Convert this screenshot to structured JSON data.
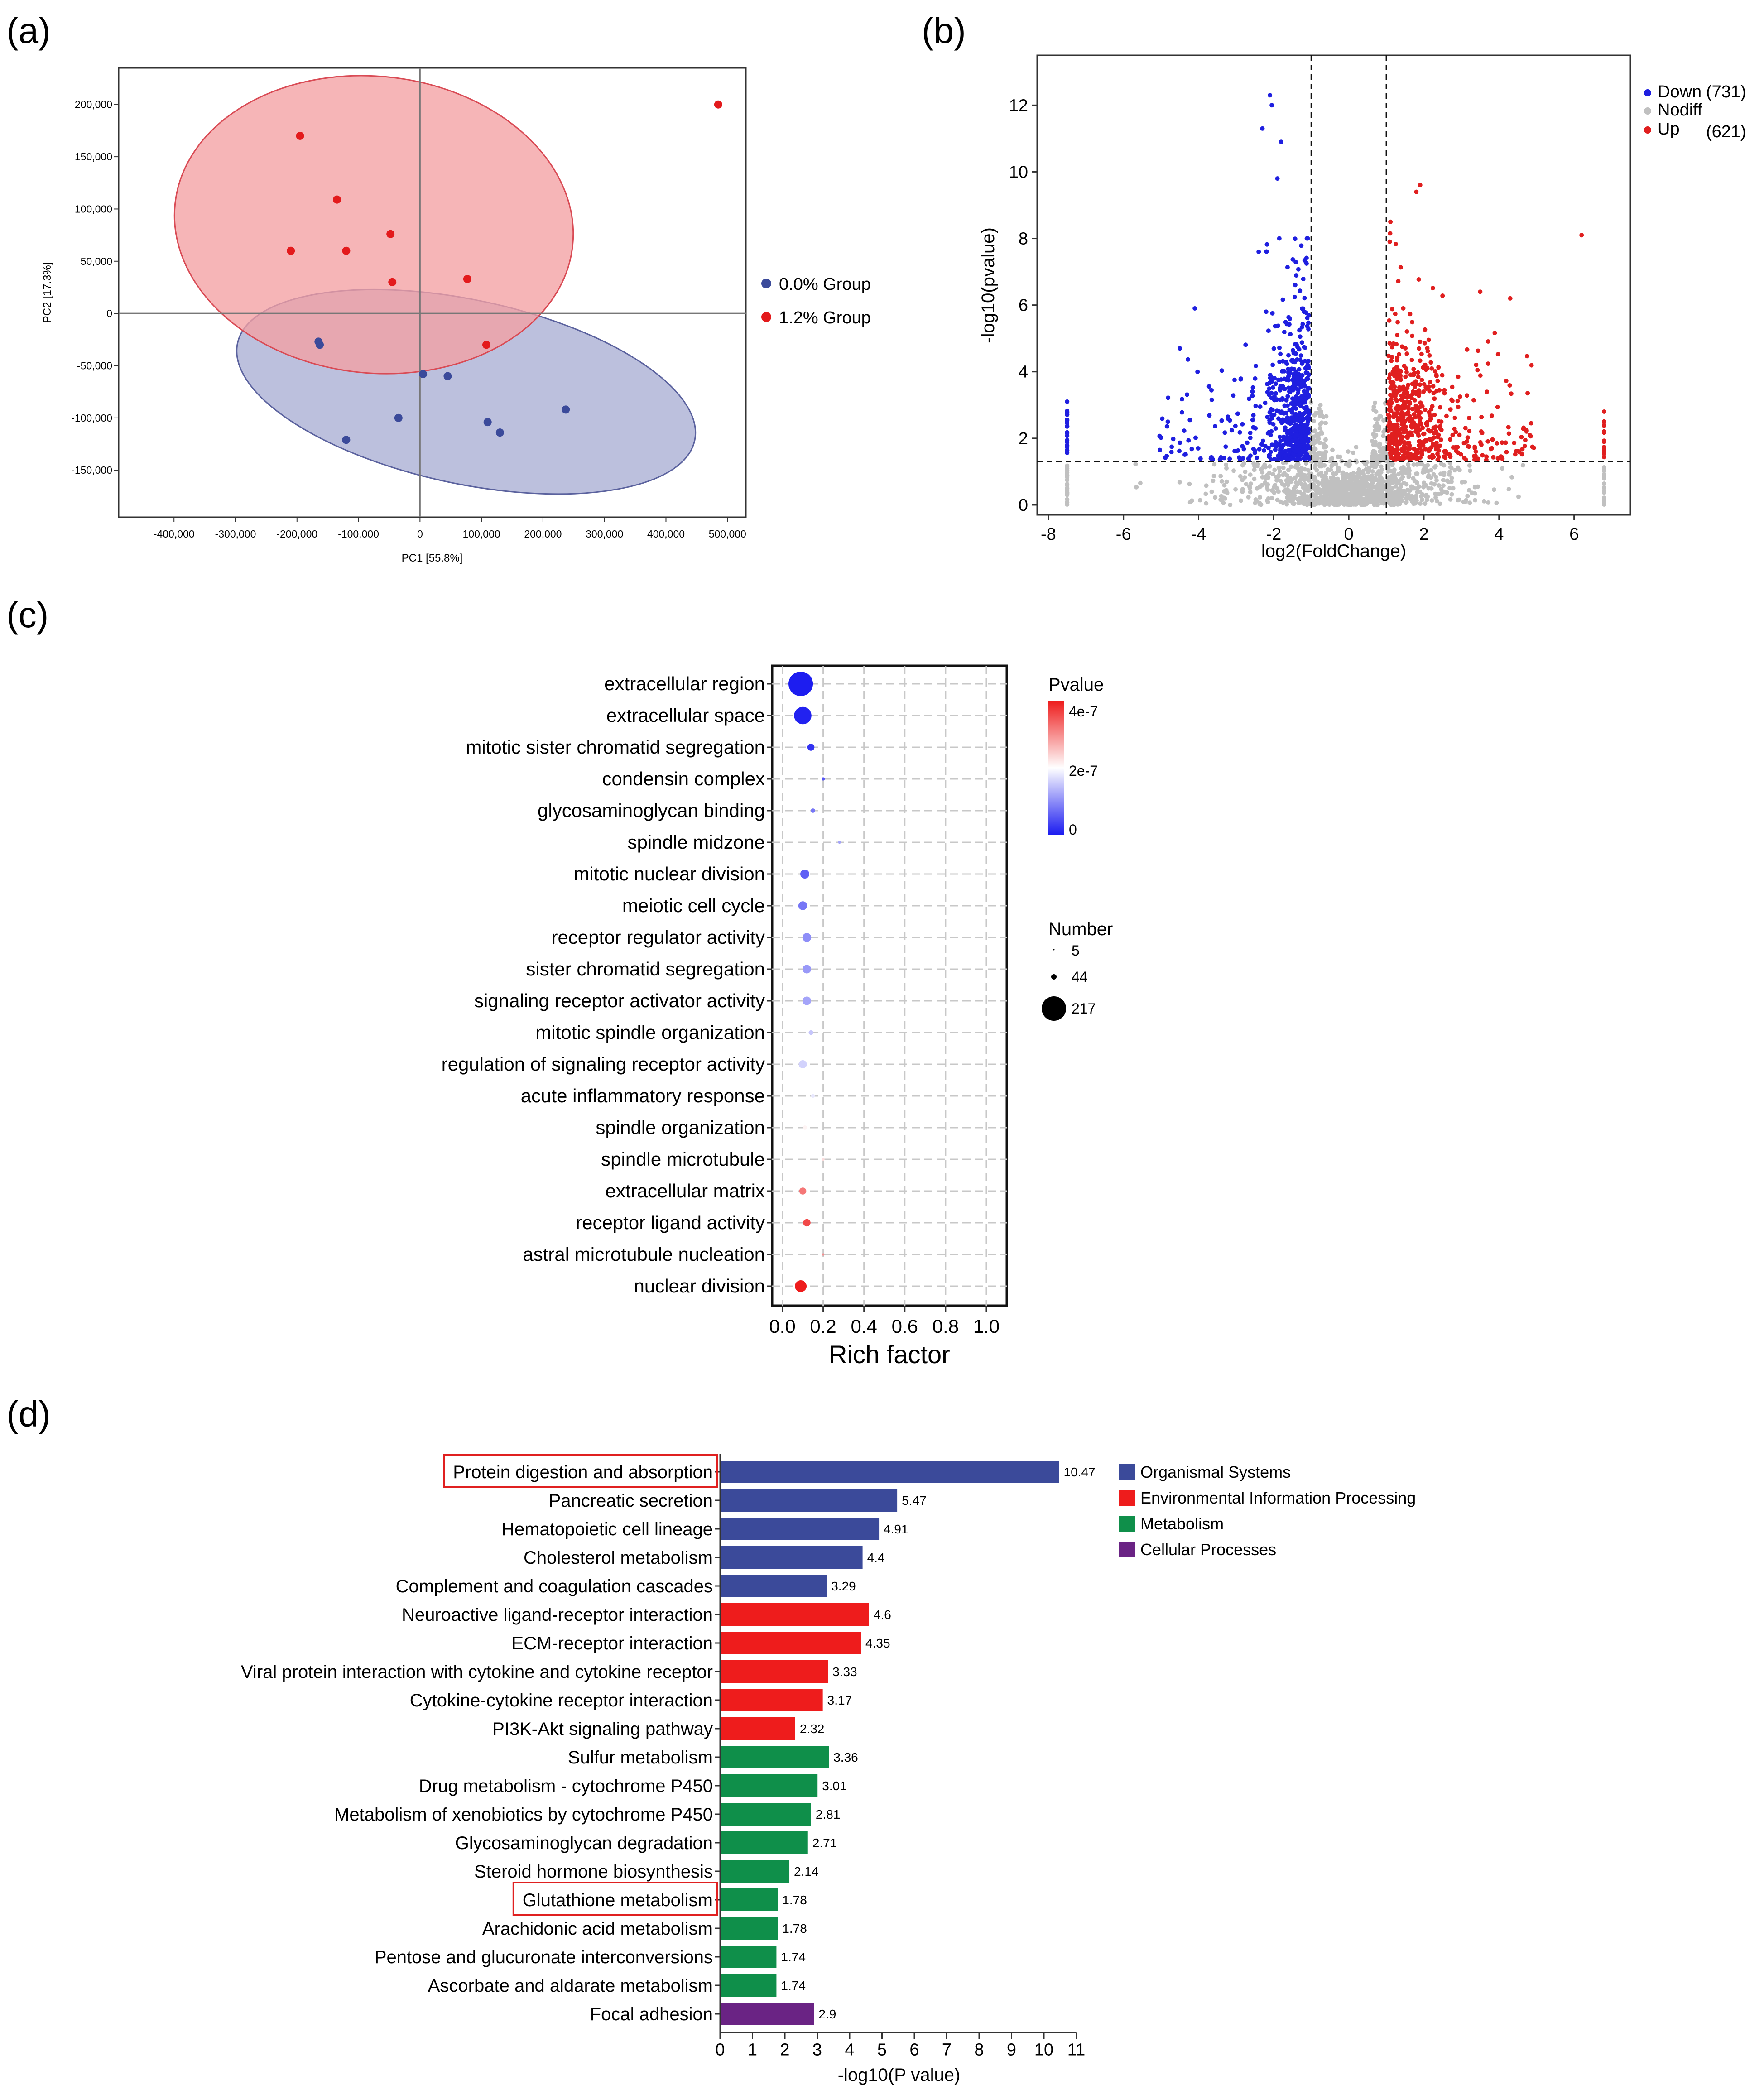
{
  "panels": {
    "a": {
      "label": "(a)"
    },
    "b": {
      "label": "(b)"
    },
    "c": {
      "label": "(c)"
    },
    "d": {
      "label": "(d)"
    }
  },
  "colors": {
    "pca_red_ellipse": "#f4a0a3",
    "pca_red_stroke": "#d94b55",
    "pca_blue_ellipse": "#a9aed3",
    "pca_blue_stroke": "#5b629e",
    "pca_red_point": "#e31a1c",
    "pca_blue_point": "#3b4a9a",
    "volcano_down": "#1f1fe0",
    "volcano_up": "#e01f1f",
    "volcano_nodiff": "#c0c0c0",
    "organismal": "#3b4a9a",
    "environmental": "#ee1c1c",
    "metabolism": "#0f8f4a",
    "cellular": "#6a2384",
    "highlight_box": "#e02020"
  },
  "chart_data": [
    {
      "id": "a",
      "type": "scatter",
      "title": "",
      "xlabel": "PC1 [55.8%]",
      "ylabel": "PC2 [17.3%]",
      "xlim": [
        -490000,
        530000
      ],
      "ylim": [
        -195000,
        235000
      ],
      "xticks": [
        -400000,
        -300000,
        -200000,
        -100000,
        0,
        100000,
        200000,
        300000,
        400000,
        500000
      ],
      "xtick_labels": [
        "-400,000",
        "-300,000",
        "-200,000",
        "-100,000",
        "0",
        "100,000",
        "200,000",
        "300,000",
        "400,000",
        "500,000"
      ],
      "yticks": [
        -150000,
        -100000,
        -50000,
        0,
        50000,
        100000,
        150000,
        200000
      ],
      "ytick_labels": [
        "-150,000",
        "-100,000",
        "-50,000",
        "0",
        "50,000",
        "100,000",
        "150,000",
        "200,000"
      ],
      "legend_position": "right",
      "series": [
        {
          "name": "0.0% Group",
          "color": "#3b4a9a",
          "ellipse": {
            "cx": 75000,
            "cy": -75000,
            "rx": 380000,
            "ry": 88000,
            "angle_deg": -12
          },
          "points": [
            [
              -165000,
              -27000
            ],
            [
              -163000,
              -30000
            ],
            [
              -120000,
              -121000
            ],
            [
              -35000,
              -100000
            ],
            [
              5000,
              -58000
            ],
            [
              45000,
              -60000
            ],
            [
              110000,
              -104000
            ],
            [
              130000,
              -114000
            ],
            [
              237000,
              -92000
            ]
          ]
        },
        {
          "name": "1.2% Group",
          "color": "#e31a1c",
          "ellipse": {
            "cx": -75000,
            "cy": 85000,
            "rx": 325000,
            "ry": 142000,
            "angle_deg": -6
          },
          "points": [
            [
              -195000,
              170000
            ],
            [
              -135000,
              109000
            ],
            [
              -210000,
              60000
            ],
            [
              -120000,
              60000
            ],
            [
              -48000,
              76000
            ],
            [
              -45000,
              30000
            ],
            [
              77000,
              33000
            ],
            [
              108000,
              -30000
            ],
            [
              485000,
              200000
            ]
          ]
        }
      ]
    },
    {
      "id": "b",
      "type": "scatter",
      "title": "",
      "xlabel": "log2(FoldChange)",
      "ylabel": "-log10(pvalue)",
      "xlim": [
        -8.3,
        7.5
      ],
      "ylim": [
        -0.3,
        13.5
      ],
      "xticks": [
        -8,
        -6,
        -4,
        -2,
        0,
        2,
        4,
        6
      ],
      "xtick_labels": [
        "-8",
        "-6",
        "-4",
        "-2",
        "0",
        "2",
        "4",
        "6"
      ],
      "yticks": [
        0,
        2,
        4,
        6,
        8,
        10,
        12
      ],
      "ytick_labels": [
        "0",
        "2",
        "4",
        "6",
        "8",
        "10",
        "12"
      ],
      "thresholds": {
        "fc": [
          -1,
          1
        ],
        "pvalue_line": 1.3
      },
      "legend_position": "top-right",
      "legend": [
        {
          "name": "Down",
          "count": "(731)",
          "color": "#1f1fe0"
        },
        {
          "name": "Nodiff",
          "count": "",
          "color": "#c0c0c0"
        },
        {
          "name": "Up",
          "count": "(621)",
          "color": "#e01f1f"
        }
      ],
      "notable_points": [
        [
          -2.1,
          12.3
        ],
        [
          -2.05,
          12.0
        ],
        [
          -2.3,
          11.3
        ],
        [
          -1.8,
          10.9
        ],
        [
          -1.9,
          9.8
        ],
        [
          -1.85,
          8.0
        ],
        [
          -2.4,
          7.6
        ],
        [
          -4.1,
          5.9
        ],
        [
          -4.5,
          4.7
        ],
        [
          -7.5,
          3.1
        ],
        [
          6.2,
          8.1
        ],
        [
          1.9,
          9.6
        ],
        [
          1.8,
          9.4
        ],
        [
          6.8,
          2.8
        ],
        [
          3.5,
          6.4
        ],
        [
          4.3,
          6.2
        ]
      ]
    },
    {
      "id": "c",
      "type": "scatter",
      "title": "",
      "xlabel": "Rich factor",
      "ylabel": "",
      "xlim": [
        -0.05,
        1.1
      ],
      "xticks": [
        0.0,
        0.2,
        0.4,
        0.6,
        0.8,
        1.0
      ],
      "xtick_labels": [
        "0.0",
        "0.2",
        "0.4",
        "0.6",
        "0.8",
        "1.0"
      ],
      "legend_position": "right",
      "color_legend": {
        "title": "Pvalue",
        "labels": [
          "4e-7",
          "2e-7",
          "0"
        ],
        "range": [
          0,
          4e-07
        ]
      },
      "size_legend": {
        "title": "Number",
        "labels": [
          "5",
          "44",
          "217"
        ],
        "values": [
          5,
          44,
          217
        ]
      },
      "categories": [
        "extracellular region",
        "extracellular space",
        "mitotic sister chromatid segregation",
        "condensin complex",
        "glycosaminoglycan binding",
        "spindle midzone",
        "mitotic nuclear division",
        "meiotic cell cycle",
        "receptor regulator activity",
        "sister chromatid segregation",
        "signaling receptor activator activity",
        "mitotic spindle organization",
        "regulation of signaling receptor activity",
        "acute inflammatory response",
        "spindle organization",
        "spindle microtubule",
        "extracellular matrix",
        "receptor ligand activity",
        "astral microtubule nucleation",
        "nuclear division"
      ],
      "rich_factor": [
        0.09,
        0.1,
        0.14,
        0.2,
        0.15,
        0.28,
        0.11,
        0.1,
        0.12,
        0.12,
        0.12,
        0.14,
        0.1,
        0.15,
        0.11,
        0.2,
        0.1,
        0.12,
        0.2,
        0.09
      ],
      "number": [
        217,
        110,
        18,
        4,
        7,
        3,
        30,
        28,
        28,
        27,
        27,
        8,
        24,
        5,
        7,
        3,
        18,
        20,
        2,
        50
      ],
      "pvalue": [
        1e-09,
        5e-09,
        2e-08,
        5e-08,
        8e-08,
        1.2e-07,
        6e-08,
        8e-08,
        1e-07,
        1.1e-07,
        1.2e-07,
        1.5e-07,
        1.6e-07,
        1.8e-07,
        2.1e-07,
        2.3e-07,
        3.2e-07,
        3.6e-07,
        3e-07,
        4e-07
      ]
    },
    {
      "id": "d",
      "type": "bar",
      "title": "",
      "xlabel": "-log10(P value)",
      "ylabel": "",
      "xlim": [
        0,
        11
      ],
      "xticks": [
        0,
        1,
        2,
        3,
        4,
        5,
        6,
        7,
        8,
        9,
        10,
        11
      ],
      "xtick_labels": [
        "0",
        "1",
        "2",
        "3",
        "4",
        "5",
        "6",
        "7",
        "8",
        "9",
        "10",
        "11"
      ],
      "legend_position": "top-right",
      "legend": [
        {
          "name": "Organismal Systems",
          "color": "#3b4a9a"
        },
        {
          "name": "Environmental Information Processing",
          "color": "#ee1c1c"
        },
        {
          "name": "Metabolism",
          "color": "#0f8f4a"
        },
        {
          "name": "Cellular Processes",
          "color": "#6a2384"
        }
      ],
      "categories": [
        "Protein digestion and absorption",
        "Pancreatic secretion",
        "Hematopoietic cell lineage",
        "Cholesterol metabolism",
        "Complement and coagulation cascades",
        "Neuroactive ligand-receptor interaction",
        "ECM-receptor interaction",
        "Viral protein interaction with cytokine and cytokine receptor",
        "Cytokine-cytokine receptor interaction",
        "PI3K-Akt signaling pathway",
        "Sulfur metabolism",
        "Drug metabolism - cytochrome P450",
        "Metabolism of xenobiotics by cytochrome P450",
        "Glycosaminoglycan degradation",
        "Steroid hormone biosynthesis",
        "Glutathione metabolism",
        "Arachidonic acid metabolism",
        "Pentose and glucuronate interconversions",
        "Ascorbate and aldarate metabolism",
        "Focal adhesion"
      ],
      "values": [
        10.47,
        5.47,
        4.91,
        4.4,
        3.29,
        4.6,
        4.35,
        3.33,
        3.17,
        2.32,
        3.36,
        3.01,
        2.81,
        2.71,
        2.14,
        1.78,
        1.78,
        1.74,
        1.74,
        2.9
      ],
      "value_labels": [
        "10.47",
        "5.47",
        "4.91",
        "4.4",
        "3.29",
        "4.6",
        "4.35",
        "3.33",
        "3.17",
        "2.32",
        "3.36",
        "3.01",
        "2.81",
        "2.71",
        "2.14",
        "1.78",
        "1.78",
        "1.74",
        "1.74",
        "2.9"
      ],
      "groups": [
        0,
        0,
        0,
        0,
        0,
        1,
        1,
        1,
        1,
        1,
        2,
        2,
        2,
        2,
        2,
        2,
        2,
        2,
        2,
        3
      ],
      "highlighted": [
        "Protein digestion and absorption",
        "Glutathione metabolism"
      ]
    }
  ]
}
